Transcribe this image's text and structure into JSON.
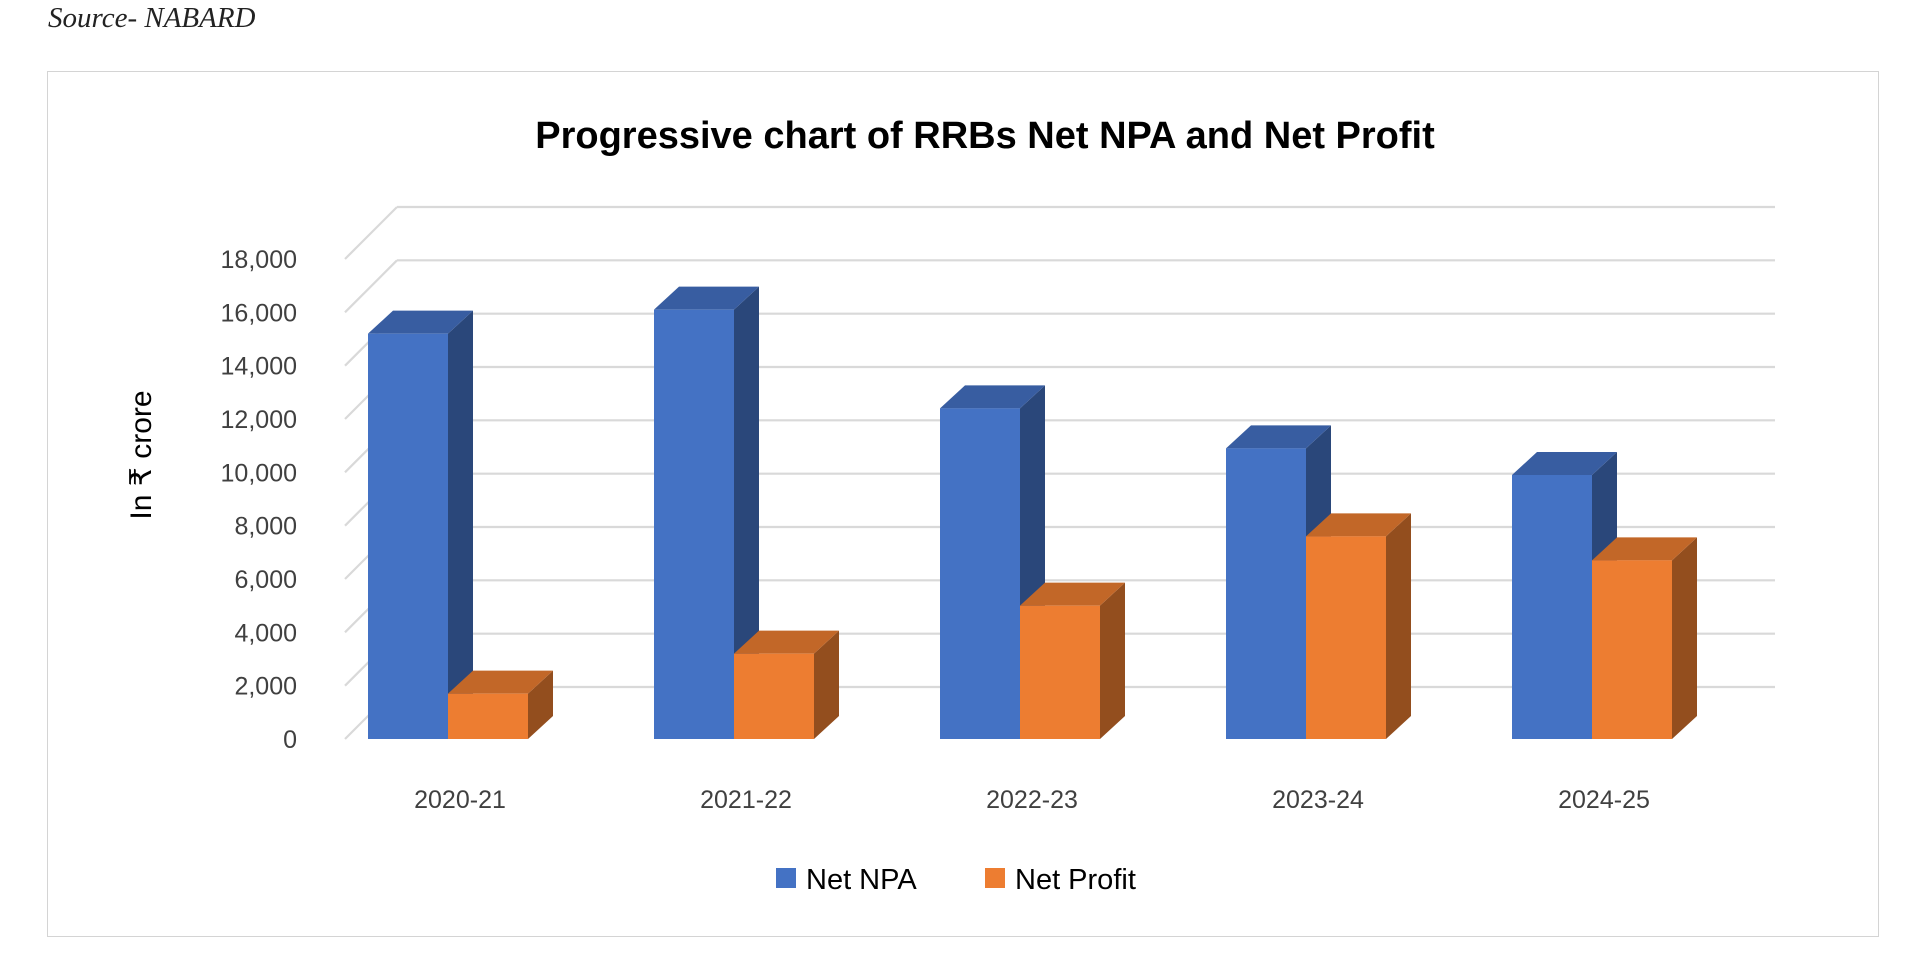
{
  "source_note": "Source- NABARD",
  "chart_data": {
    "type": "bar",
    "style": "3d-clustered-column",
    "title": "Progressive chart of RRBs Net NPA and Net Profit",
    "xlabel": "",
    "ylabel": "In ₹ crore",
    "ylim": [
      0,
      18000
    ],
    "y_ticks": [
      0,
      2000,
      4000,
      6000,
      8000,
      10000,
      12000,
      14000,
      16000,
      18000
    ],
    "y_tick_labels": [
      "0",
      "2,000",
      "4,000",
      "6,000",
      "8,000",
      "10,000",
      "12,000",
      "14,000",
      "16,000",
      "18,000"
    ],
    "grid": true,
    "legend_position": "bottom",
    "categories": [
      "2020-21",
      "2021-22",
      "2022-23",
      "2023-24",
      "2024-25"
    ],
    "series": [
      {
        "name": "Net NPA",
        "color": "#4472c4",
        "values": [
          15200,
          16100,
          12400,
          10900,
          9900
        ]
      },
      {
        "name": "Net Profit",
        "color": "#ed7d31",
        "values": [
          1700,
          3200,
          5000,
          7600,
          6700
        ]
      }
    ]
  }
}
